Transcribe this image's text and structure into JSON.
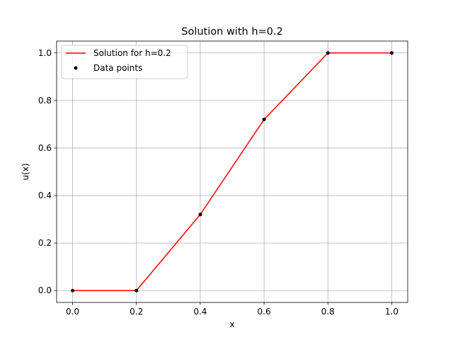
{
  "chart_data": {
    "type": "line",
    "title": "Solution with h=0.2",
    "xlabel": "x",
    "ylabel": "u(x)",
    "xlim": [
      -0.05,
      1.05
    ],
    "ylim": [
      -0.05,
      1.05
    ],
    "xticks": [
      0.0,
      0.2,
      0.4,
      0.6,
      0.8,
      1.0
    ],
    "xtick_labels": [
      "0.0",
      "0.2",
      "0.4",
      "0.6",
      "0.8",
      "1.0"
    ],
    "yticks": [
      0.0,
      0.2,
      0.4,
      0.6,
      0.8,
      1.0
    ],
    "ytick_labels": [
      "0.0",
      "0.2",
      "0.4",
      "0.6",
      "0.8",
      "1.0"
    ],
    "grid": true,
    "legend_position": "top-left",
    "series": [
      {
        "name": "Solution for h=0.2",
        "kind": "line",
        "color": "#ff0000",
        "x": [
          0.0,
          0.2,
          0.4,
          0.6,
          0.8,
          1.0
        ],
        "y": [
          0.0,
          0.0,
          0.32,
          0.72,
          1.0,
          1.0
        ]
      },
      {
        "name": "Data points",
        "kind": "scatter",
        "color": "#000000",
        "x": [
          0.0,
          0.2,
          0.4,
          0.6,
          0.8,
          1.0
        ],
        "y": [
          0.0,
          0.0,
          0.32,
          0.72,
          1.0,
          1.0
        ]
      }
    ]
  }
}
